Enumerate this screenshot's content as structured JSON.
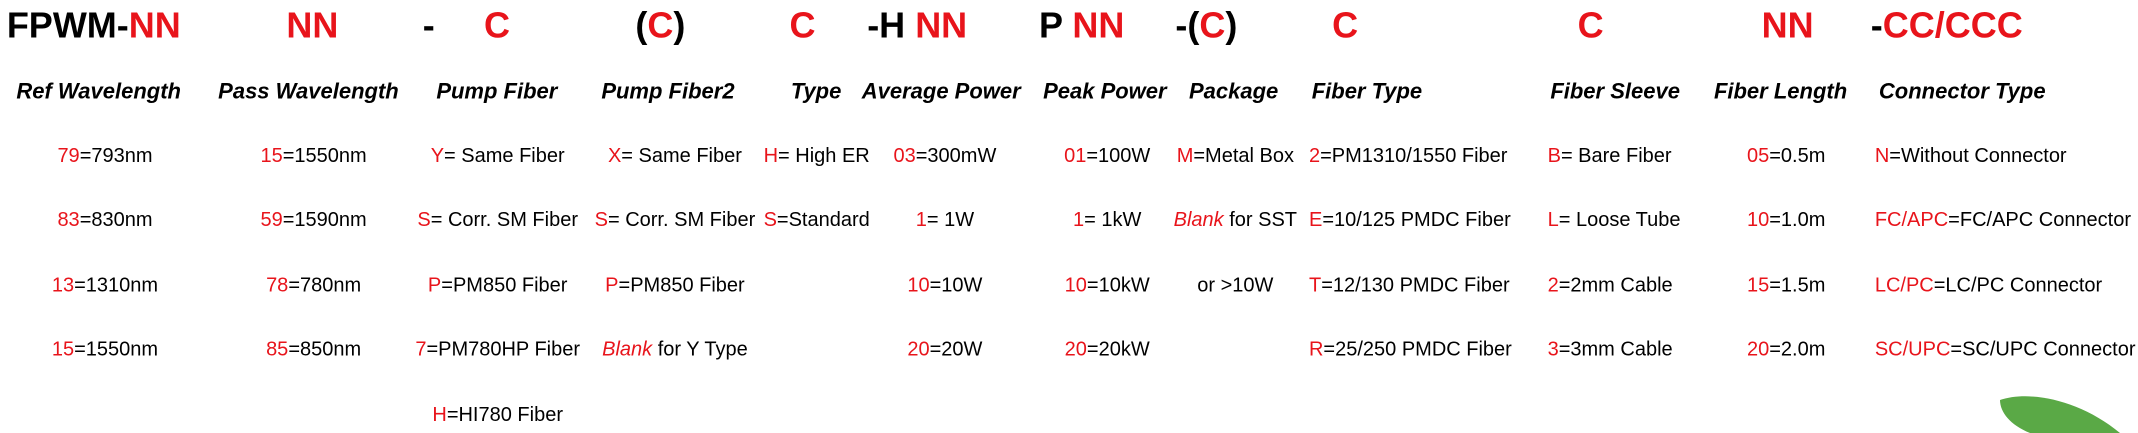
{
  "code": [
    [
      {
        "text": "FPWM-",
        "color": "#000000"
      },
      {
        "text": "NN",
        "color": "#e8141b"
      }
    ],
    [
      {
        "text": "NN",
        "color": "#e8141b"
      }
    ],
    [
      {
        "text": "-",
        "color": "#000000"
      }
    ],
    [
      {
        "text": "C",
        "color": "#e8141b"
      }
    ],
    [
      {
        "text": "(",
        "color": "#000000"
      },
      {
        "text": "C",
        "color": "#e8141b"
      },
      {
        "text": ")",
        "color": "#000000"
      }
    ],
    [
      {
        "text": "C",
        "color": "#e8141b"
      }
    ],
    [
      {
        "text": "-H ",
        "color": "#000000"
      },
      {
        "text": "NN",
        "color": "#e8141b"
      }
    ],
    [
      {
        "text": "P ",
        "color": "#000000"
      },
      {
        "text": "NN",
        "color": "#e8141b"
      }
    ],
    [
      {
        "text": "-(",
        "color": "#000000"
      },
      {
        "text": "C",
        "color": "#e8141b"
      },
      {
        "text": ")",
        "color": "#000000"
      }
    ],
    [
      {
        "text": "C",
        "color": "#e8141b"
      }
    ],
    [
      {
        "text": "C",
        "color": "#e8141b"
      }
    ],
    [
      {
        "text": "NN",
        "color": "#e8141b"
      }
    ],
    [
      {
        "text": "-",
        "color": "#000000"
      },
      {
        "text": "CC/CCC",
        "color": "#e8141b"
      }
    ]
  ],
  "columns": [
    {
      "header": "Ref Wavelength",
      "entries": [
        {
          "code": "79",
          "desc": "=793nm"
        },
        {
          "code": "83",
          "desc": "=830nm"
        },
        {
          "code": "13",
          "desc": "=1310nm"
        },
        {
          "code": "15",
          "desc": "=1550nm"
        }
      ]
    },
    {
      "header": "Pass Wavelength",
      "entries": [
        {
          "code": "15",
          "desc": "=1550nm"
        },
        {
          "code": "59",
          "desc": "=1590nm"
        },
        {
          "code": "78",
          "desc": "=780nm"
        },
        {
          "code": "85",
          "desc": "=850nm"
        }
      ]
    },
    {
      "header": "Pump Fiber",
      "entries": [
        {
          "code": "Y",
          "desc": "= Same Fiber"
        },
        {
          "code": "S",
          "desc": "= Corr. SM Fiber"
        },
        {
          "code": "P",
          "desc": "=PM850 Fiber"
        },
        {
          "code": "7",
          "desc": "=PM780HP Fiber"
        },
        {
          "code": "H",
          "desc": "=HI780 Fiber"
        }
      ]
    },
    {
      "header": "Pump Fiber2",
      "entries": [
        {
          "code": "X",
          "desc": "= Same Fiber"
        },
        {
          "code": "S",
          "desc": "= Corr. SM Fiber"
        },
        {
          "code": "P",
          "desc": "=PM850 Fiber"
        },
        {
          "code": "Blank",
          "italic": true,
          "desc": " for Y Type"
        }
      ]
    },
    {
      "header": "Type",
      "entries": [
        {
          "code": "H",
          "desc": "= High ER"
        },
        {
          "code": "S",
          "desc": "=Standard"
        }
      ]
    },
    {
      "header": "Average Power",
      "entries": [
        {
          "code": "03",
          "desc": "=300mW"
        },
        {
          "code": "1",
          "desc": "= 1W"
        },
        {
          "code": "10",
          "desc": "=10W"
        },
        {
          "code": "20",
          "desc": "=20W"
        }
      ]
    },
    {
      "header": "Peak Power",
      "entries": [
        {
          "code": "01",
          "desc": "=100W"
        },
        {
          "code": "1",
          "desc": "= 1kW"
        },
        {
          "code": "10",
          "desc": "=10kW"
        },
        {
          "code": "20",
          "desc": "=20kW"
        }
      ]
    },
    {
      "header": "Package",
      "entries": [
        {
          "code": "M",
          "desc": "=Metal Box"
        },
        {
          "code": "Blank",
          "italic": true,
          "desc": " for SST"
        },
        {
          "desc": "or >10W"
        }
      ]
    },
    {
      "header": "Fiber Type",
      "entries": [
        {
          "code": "2",
          "desc": "=PM1310/1550 Fiber"
        },
        {
          "code": "E",
          "desc": "=10/125 PMDC Fiber"
        },
        {
          "code": "T",
          "desc": "=12/130 PMDC Fiber"
        },
        {
          "code": "R",
          "desc": "=25/250 PMDC Fiber"
        }
      ]
    },
    {
      "header": "Fiber Sleeve",
      "entries": [
        {
          "code": "B",
          "desc": "= Bare Fiber"
        },
        {
          "code": "L",
          "desc": "= Loose Tube"
        },
        {
          "code": "2",
          "desc": "=2mm Cable"
        },
        {
          "code": "3",
          "desc": "=3mm Cable"
        }
      ]
    },
    {
      "header": "Fiber Length",
      "entries": [
        {
          "code": "05",
          "desc": "=0.5m"
        },
        {
          "code": "10",
          "desc": "=1.0m"
        },
        {
          "code": "15",
          "desc": "=1.5m"
        },
        {
          "code": "20",
          "desc": "=2.0m"
        }
      ]
    },
    {
      "header": "Connector Type",
      "entries": [
        {
          "code": "N",
          "desc": "=Without Connector"
        },
        {
          "code": "FC/APC",
          "desc": "=FC/APC Connector"
        },
        {
          "code": "LC/PC",
          "desc": "=LC/PC Connector"
        },
        {
          "code": "SC/UPC",
          "desc": "=SC/UPC Connector"
        }
      ]
    }
  ]
}
